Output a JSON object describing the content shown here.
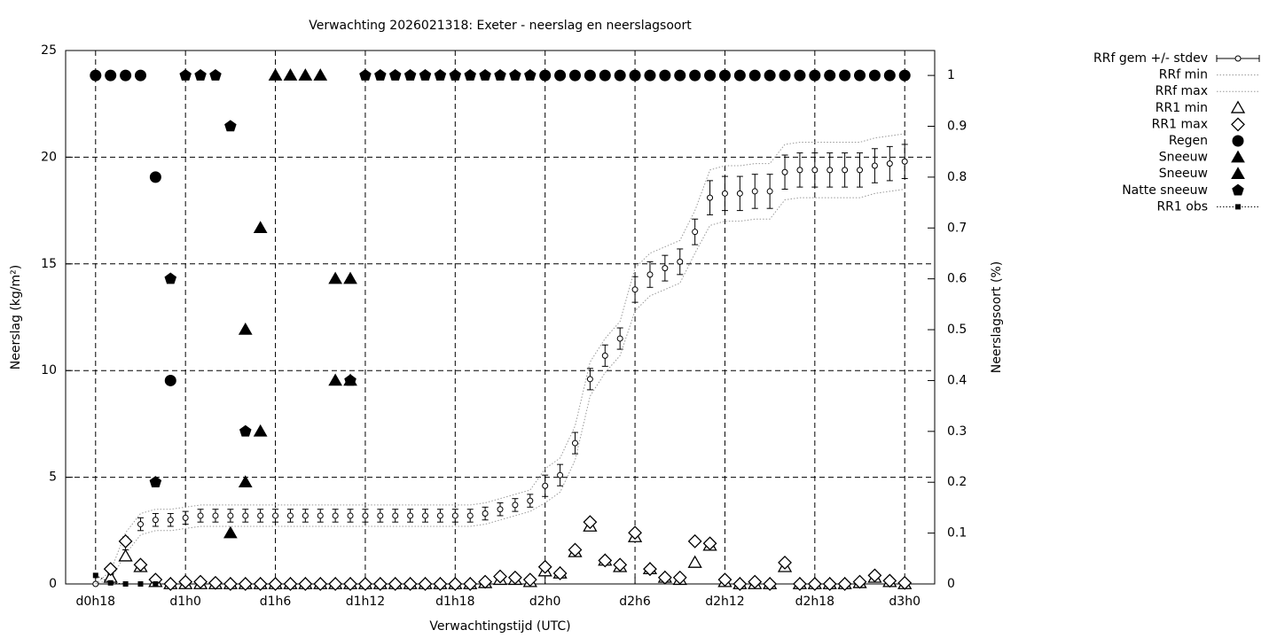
{
  "chart_data": {
    "type": "errorbar-line",
    "title": "Verwachting 2026021318: Exeter - neerslag en neerslagsoort",
    "xlabel": "Verwachtingstijd (UTC)",
    "ylabel": "Neerslag (kg/m²)",
    "y2label": "Neerslagsoort (%)",
    "grid": true,
    "x": [
      18,
      19,
      20,
      21,
      22,
      23,
      24,
      25,
      26,
      27,
      28,
      29,
      30,
      31,
      32,
      33,
      34,
      35,
      36,
      37,
      38,
      39,
      40,
      41,
      42,
      43,
      44,
      45,
      46,
      47,
      48,
      49,
      50,
      51,
      52,
      53,
      54,
      55,
      56,
      57,
      58,
      59,
      60,
      61,
      62,
      63,
      64,
      65,
      66,
      67,
      68,
      69,
      70,
      71,
      72
    ],
    "xlim": [
      16,
      74
    ],
    "xticks": [
      {
        "value": 18,
        "label": "d0h18"
      },
      {
        "value": 24,
        "label": "d1h0"
      },
      {
        "value": 30,
        "label": "d1h6"
      },
      {
        "value": 36,
        "label": "d1h12"
      },
      {
        "value": 42,
        "label": "d1h18"
      },
      {
        "value": 48,
        "label": "d2h0"
      },
      {
        "value": 54,
        "label": "d2h6"
      },
      {
        "value": 60,
        "label": "d2h12"
      },
      {
        "value": 66,
        "label": "d2h18"
      },
      {
        "value": 72,
        "label": "d3h0"
      }
    ],
    "ylim": [
      0,
      25
    ],
    "yticks": [
      0,
      5,
      10,
      15,
      20,
      25
    ],
    "y2lim": [
      0,
      1.049
    ],
    "y2ticks": [
      0,
      0.1,
      0.2,
      0.3,
      0.4,
      0.5,
      0.6,
      0.7,
      0.8,
      0.9,
      1
    ],
    "series": [
      {
        "name": "RRf gem +/- stdev",
        "color": "#000000",
        "marker": "circle-open",
        "values": [
          0,
          0.4,
          1.9,
          2.8,
          3.0,
          3.0,
          3.1,
          3.2,
          3.2,
          3.2,
          3.2,
          3.2,
          3.2,
          3.2,
          3.2,
          3.2,
          3.2,
          3.2,
          3.2,
          3.2,
          3.2,
          3.2,
          3.2,
          3.2,
          3.2,
          3.2,
          3.3,
          3.5,
          3.7,
          3.9,
          4.6,
          5.1,
          6.6,
          9.6,
          10.7,
          11.5,
          13.8,
          14.5,
          14.8,
          15.1,
          16.5,
          18.1,
          18.3,
          18.3,
          18.4,
          18.4,
          19.3,
          19.4,
          19.4,
          19.4,
          19.4,
          19.4,
          19.6,
          19.7,
          19.8
        ],
        "errors": [
          0,
          0.1,
          0.3,
          0.3,
          0.3,
          0.3,
          0.3,
          0.3,
          0.3,
          0.3,
          0.3,
          0.3,
          0.3,
          0.3,
          0.3,
          0.3,
          0.3,
          0.3,
          0.3,
          0.3,
          0.3,
          0.3,
          0.3,
          0.3,
          0.3,
          0.3,
          0.3,
          0.3,
          0.3,
          0.3,
          0.5,
          0.5,
          0.5,
          0.5,
          0.5,
          0.5,
          0.6,
          0.6,
          0.6,
          0.6,
          0.6,
          0.8,
          0.8,
          0.8,
          0.8,
          0.8,
          0.8,
          0.8,
          0.8,
          0.8,
          0.8,
          0.8,
          0.8,
          0.8,
          0.8
        ]
      },
      {
        "name": "RRf min",
        "color": "#999999",
        "line": "dotted",
        "values": [
          0,
          0.2,
          1.4,
          2.3,
          2.5,
          2.5,
          2.6,
          2.7,
          2.7,
          2.7,
          2.7,
          2.7,
          2.7,
          2.7,
          2.7,
          2.7,
          2.7,
          2.7,
          2.7,
          2.7,
          2.7,
          2.7,
          2.7,
          2.7,
          2.7,
          2.7,
          2.8,
          3.0,
          3.2,
          3.4,
          3.8,
          4.3,
          5.8,
          8.8,
          9.9,
          10.7,
          12.8,
          13.5,
          13.8,
          14.1,
          15.5,
          16.8,
          17.0,
          17.0,
          17.1,
          17.1,
          18.0,
          18.1,
          18.1,
          18.1,
          18.1,
          18.1,
          18.3,
          18.4,
          18.5
        ]
      },
      {
        "name": "RRf max",
        "color": "#999999",
        "line": "dotted",
        "values": [
          0,
          0.6,
          2.4,
          3.3,
          3.5,
          3.5,
          3.6,
          3.7,
          3.7,
          3.7,
          3.7,
          3.7,
          3.7,
          3.7,
          3.7,
          3.7,
          3.7,
          3.7,
          3.7,
          3.7,
          3.7,
          3.7,
          3.7,
          3.7,
          3.7,
          3.7,
          3.8,
          4.0,
          4.2,
          4.4,
          5.4,
          5.9,
          7.4,
          10.4,
          11.5,
          12.3,
          14.8,
          15.5,
          15.8,
          16.1,
          17.5,
          19.4,
          19.6,
          19.6,
          19.7,
          19.7,
          20.6,
          20.7,
          20.7,
          20.7,
          20.7,
          20.7,
          20.9,
          21.0,
          21.1
        ]
      },
      {
        "name": "RR1 min",
        "color": "#000000",
        "marker": "triangle-open",
        "values": [
          null,
          0.3,
          1.3,
          0.8,
          0.1,
          0,
          0,
          0,
          0,
          0,
          0,
          0,
          0,
          0,
          0,
          0,
          0,
          0,
          0,
          0,
          0,
          0,
          0,
          0,
          0,
          0,
          0.05,
          0.2,
          0.2,
          0.1,
          0.6,
          0.5,
          1.5,
          2.7,
          1.1,
          0.8,
          2.2,
          0.7,
          0.3,
          0.2,
          1.0,
          1.8,
          0.1,
          0,
          0,
          0,
          0.8,
          0,
          0,
          0,
          0,
          0.05,
          0.3,
          0.1,
          0
        ]
      },
      {
        "name": "RR1 max",
        "color": "#000000",
        "marker": "diamond-open",
        "values": [
          null,
          0.7,
          2.0,
          0.9,
          0.2,
          0,
          0.1,
          0.1,
          0.05,
          0,
          0,
          0,
          0,
          0,
          0,
          0,
          0,
          0,
          0,
          0,
          0,
          0,
          0,
          0,
          0,
          0,
          0.1,
          0.35,
          0.3,
          0.2,
          0.8,
          0.5,
          1.6,
          2.9,
          1.1,
          0.9,
          2.4,
          0.7,
          0.3,
          0.3,
          2.0,
          1.9,
          0.2,
          0,
          0.1,
          0,
          1.0,
          0,
          0,
          0,
          0,
          0.1,
          0.4,
          0.15,
          0.05
        ]
      },
      {
        "name": "Regen",
        "color": "#000000",
        "marker": "circle",
        "axis": "y2",
        "values": [
          1,
          1,
          1,
          1,
          0.8,
          0.4,
          null,
          null,
          null,
          null,
          null,
          null,
          null,
          null,
          null,
          null,
          null,
          null,
          null,
          null,
          null,
          null,
          null,
          null,
          null,
          null,
          null,
          null,
          null,
          null,
          1,
          1,
          1,
          1,
          1,
          1,
          1,
          1,
          1,
          1,
          1,
          1,
          1,
          1,
          1,
          1,
          1,
          1,
          1,
          1,
          1,
          1,
          1,
          1,
          1
        ]
      },
      {
        "name": "Sneeuw",
        "color": "#000000",
        "marker": "triangle",
        "axis": "y2",
        "values": [
          null,
          null,
          null,
          null,
          null,
          null,
          null,
          null,
          null,
          0.1,
          0.2,
          0.3,
          1,
          1,
          1,
          1,
          0.4,
          0.4,
          null,
          null,
          null,
          null,
          null,
          null,
          null,
          null,
          null,
          null,
          null,
          null,
          null,
          null,
          null,
          null,
          null,
          null,
          null,
          null,
          null,
          null,
          null,
          null,
          null,
          null,
          null,
          null,
          null,
          null,
          null,
          null,
          null,
          null,
          null,
          null,
          null
        ]
      },
      {
        "name": "Sneeuw",
        "color": "#000000",
        "marker": "triangle",
        "axis": "y2",
        "values": [
          null,
          null,
          null,
          null,
          null,
          null,
          null,
          null,
          null,
          null,
          0.5,
          0.7,
          null,
          null,
          null,
          null,
          0.6,
          0.6,
          null,
          null,
          null,
          null,
          null,
          null,
          null,
          null,
          null,
          null,
          null,
          null,
          null,
          null,
          null,
          null,
          null,
          null,
          null,
          null,
          null,
          null,
          null,
          null,
          null,
          null,
          null,
          null,
          null,
          null,
          null,
          null,
          null,
          null,
          null,
          null,
          null
        ]
      },
      {
        "name": "Natte sneeuw",
        "color": "#000000",
        "marker": "pentagon",
        "axis": "y2",
        "values": [
          null,
          null,
          null,
          null,
          0.2,
          0.6,
          1,
          1,
          1,
          0.9,
          0.3,
          null,
          null,
          null,
          null,
          null,
          null,
          0.4,
          1,
          1,
          1,
          1,
          1,
          1,
          1,
          1,
          1,
          1,
          1,
          1,
          null,
          null,
          null,
          null,
          null,
          null,
          null,
          null,
          null,
          null,
          null,
          null,
          null,
          null,
          null,
          null,
          null,
          null,
          null,
          null,
          null,
          null,
          null,
          null,
          null
        ]
      },
      {
        "name": "RR1 obs",
        "color": "#000000",
        "marker": "square",
        "line": "dotted",
        "values": [
          0.4,
          0.05,
          0,
          0,
          0,
          null,
          null,
          null,
          null,
          null,
          null,
          null,
          null,
          null,
          null,
          null,
          null,
          null,
          null,
          null,
          null,
          null,
          null,
          null,
          null,
          null,
          null,
          null,
          null,
          null,
          null,
          null,
          null,
          null,
          null,
          null,
          null,
          null,
          null,
          null,
          null,
          null,
          null,
          null,
          null,
          null,
          null,
          null,
          null,
          null,
          null,
          null,
          null,
          null,
          null
        ]
      }
    ]
  }
}
